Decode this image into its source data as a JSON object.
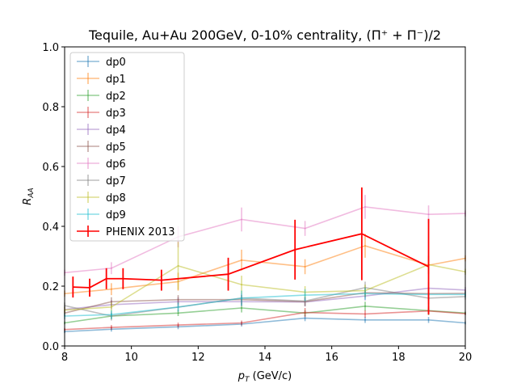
{
  "chart_data": {
    "type": "line",
    "title": "Tequile, Au+Au 200GeV, 0-10% centrality, (Π⁺ + Π⁻)/2",
    "xlabel": "p_T (GeV/c)",
    "ylabel": "R_AA",
    "xlim": [
      8,
      20
    ],
    "ylim": [
      0,
      1.0
    ],
    "x_ticks": [
      "8",
      "10",
      "12",
      "14",
      "16",
      "18",
      "20"
    ],
    "y_ticks": [
      "0.0",
      "0.2",
      "0.4",
      "0.6",
      "0.8",
      "1.0"
    ],
    "grid": false,
    "legend_position": "upper-left",
    "series": [
      {
        "name": "dp0",
        "color": "#1f77b4",
        "x": [
          8,
          9.4,
          11.4,
          13.3,
          15.2,
          17.0,
          18.9,
          20
        ],
        "y": [
          0.048,
          0.056,
          0.064,
          0.073,
          0.093,
          0.087,
          0.087,
          0.077
        ],
        "err": [
          0.005,
          0.008,
          0.008,
          0.008,
          0.01,
          0.01,
          0.01,
          0.005
        ]
      },
      {
        "name": "dp1",
        "color": "#ff7f0e",
        "x": [
          8,
          9.4,
          11.4,
          13.3,
          15.2,
          17.0,
          18.9,
          20
        ],
        "y": [
          0.175,
          0.19,
          0.215,
          0.287,
          0.265,
          0.335,
          0.27,
          0.293
        ],
        "err": [
          0.01,
          0.02,
          0.03,
          0.035,
          0.025,
          0.04,
          0.03,
          0.01
        ]
      },
      {
        "name": "dp2",
        "color": "#2ca02c",
        "x": [
          8,
          9.4,
          11.4,
          13.3,
          15.2,
          17.0,
          18.9,
          20
        ],
        "y": [
          0.077,
          0.1,
          0.11,
          0.127,
          0.11,
          0.133,
          0.118,
          0.11
        ],
        "err": [
          0.005,
          0.01,
          0.01,
          0.015,
          0.01,
          0.015,
          0.015,
          0.005
        ]
      },
      {
        "name": "dp3",
        "color": "#d62728",
        "x": [
          8,
          9.4,
          11.4,
          13.3,
          15.2,
          17.0,
          18.9,
          20
        ],
        "y": [
          0.055,
          0.062,
          0.07,
          0.077,
          0.112,
          0.107,
          0.117,
          0.108
        ],
        "err": [
          0.005,
          0.008,
          0.008,
          0.008,
          0.015,
          0.012,
          0.01,
          0.005
        ]
      },
      {
        "name": "dp4",
        "color": "#9467bd",
        "x": [
          8,
          9.4,
          11.4,
          13.3,
          15.2,
          17.0,
          18.9,
          20
        ],
        "y": [
          0.122,
          0.138,
          0.148,
          0.148,
          0.147,
          0.167,
          0.193,
          0.187
        ],
        "err": [
          0.01,
          0.015,
          0.015,
          0.015,
          0.015,
          0.015,
          0.02,
          0.01
        ]
      },
      {
        "name": "dp5",
        "color": "#8c564b",
        "x": [
          8,
          9.4,
          11.4,
          13.3,
          15.2,
          17.0,
          18.9,
          20
        ],
        "y": [
          0.11,
          0.148,
          0.155,
          0.155,
          0.148,
          0.178,
          0.175,
          0.176
        ],
        "err": [
          0.01,
          0.015,
          0.015,
          0.015,
          0.015,
          0.015,
          0.02,
          0.01
        ]
      },
      {
        "name": "dp6",
        "color": "#e377c2",
        "x": [
          8,
          9.4,
          11.4,
          13.3,
          15.2,
          17.0,
          18.9,
          20
        ],
        "y": [
          0.245,
          0.26,
          0.365,
          0.423,
          0.393,
          0.465,
          0.44,
          0.443
        ],
        "err": [
          0.01,
          0.02,
          0.035,
          0.04,
          0.025,
          0.04,
          0.03,
          0.01
        ]
      },
      {
        "name": "dp7",
        "color": "#7f7f7f",
        "x": [
          8,
          9.4,
          11.4,
          13.3,
          15.2,
          17.0,
          18.9,
          20
        ],
        "y": [
          0.135,
          0.1,
          0.13,
          0.16,
          0.15,
          0.195,
          0.16,
          0.165
        ],
        "err": [
          0.01,
          0.015,
          0.015,
          0.015,
          0.015,
          0.02,
          0.02,
          0.01
        ]
      },
      {
        "name": "dp8",
        "color": "#bcbd22",
        "x": [
          8,
          9.4,
          11.4,
          13.3,
          15.2,
          17.0,
          18.9,
          20
        ],
        "y": [
          0.12,
          0.13,
          0.268,
          0.205,
          0.18,
          0.185,
          0.272,
          0.248
        ],
        "err": [
          0.01,
          0.015,
          0.08,
          0.03,
          0.02,
          0.02,
          0.03,
          0.01
        ]
      },
      {
        "name": "dp9",
        "color": "#17becf",
        "x": [
          8,
          9.4,
          11.4,
          13.3,
          15.2,
          17.0,
          18.9,
          20
        ],
        "y": [
          0.1,
          0.105,
          0.13,
          0.16,
          0.17,
          0.175,
          0.172,
          0.172
        ],
        "err": [
          0.01,
          0.015,
          0.015,
          0.025,
          0.02,
          0.02,
          0.02,
          0.01
        ]
      },
      {
        "name": "PHENIX 2013",
        "color": "#ff0000",
        "x": [
          8.25,
          8.75,
          9.25,
          9.75,
          10.9,
          12.9,
          14.9,
          16.9,
          18.9
        ],
        "y": [
          0.197,
          0.195,
          0.225,
          0.225,
          0.22,
          0.24,
          0.322,
          0.375,
          0.265
        ],
        "err": [
          0.035,
          0.03,
          0.035,
          0.035,
          0.035,
          0.055,
          0.1,
          0.155,
          0.16
        ]
      }
    ]
  }
}
